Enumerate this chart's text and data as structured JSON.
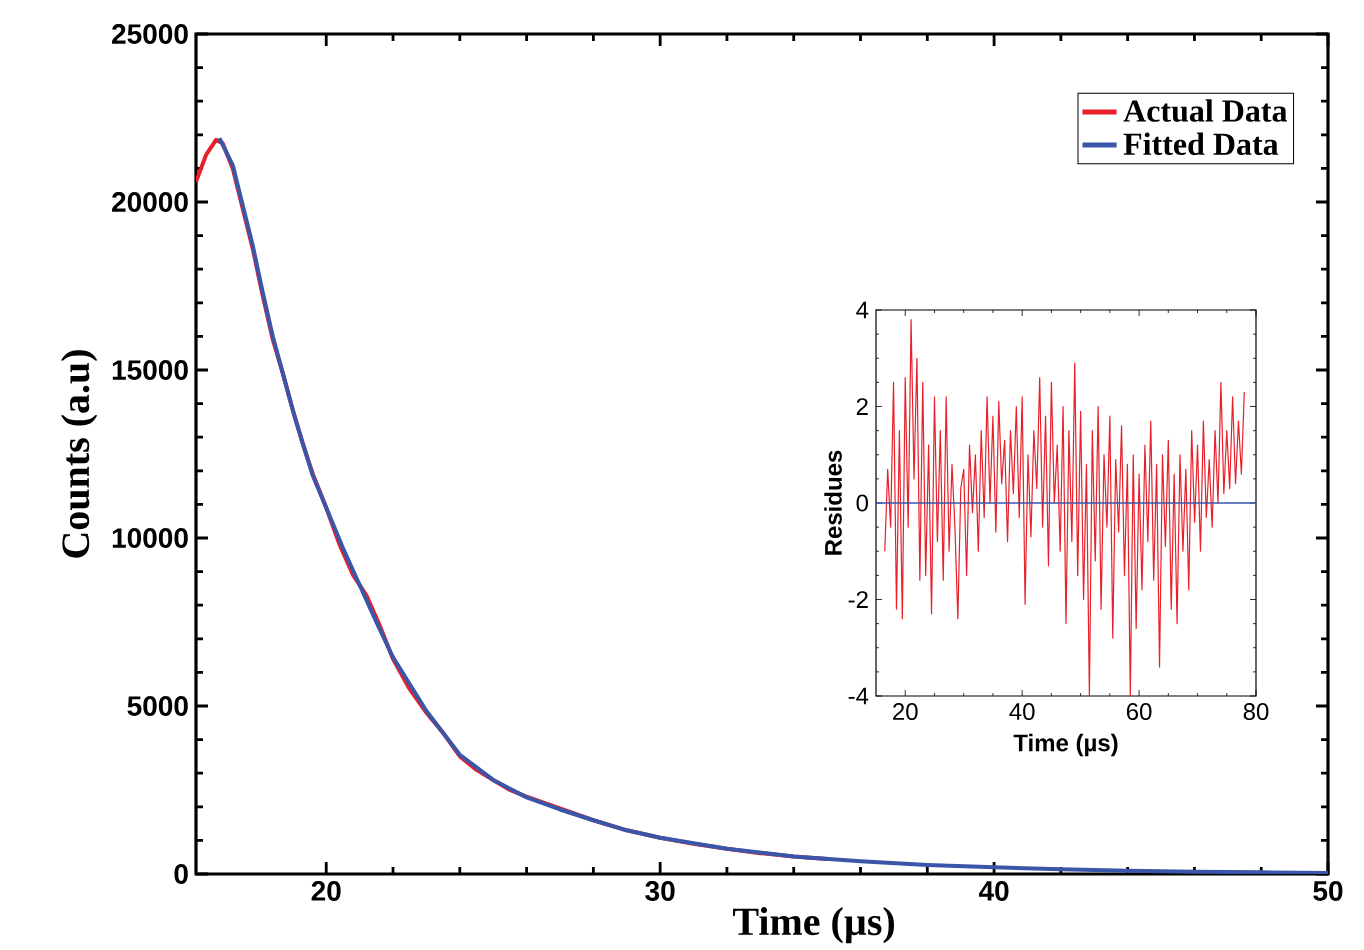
{
  "chart_data": [
    {
      "type": "line",
      "xlabel": "Time (µs)",
      "ylabel": "Counts (a.u)",
      "xlim": [
        16.1,
        50
      ],
      "xticks": [
        20,
        30,
        40,
        50
      ],
      "ylim": [
        0,
        25000
      ],
      "yticks": [
        0,
        5000,
        10000,
        15000,
        20000,
        25000
      ],
      "legend": "top right",
      "series": [
        {
          "name": "Actual Data",
          "color": "#e8202a",
          "x": [
            16.1,
            16.4,
            16.7,
            16.9,
            17.2,
            17.5,
            17.8,
            18.1,
            18.4,
            18.7,
            19,
            19.3,
            19.6,
            20,
            20.4,
            20.8,
            21.2,
            21.6,
            22,
            22.5,
            23,
            23.5,
            24,
            24.5,
            25,
            25.5,
            26,
            27,
            28,
            29,
            30,
            31,
            32,
            33,
            34,
            35
          ],
          "values": [
            20600,
            21400,
            21850,
            21750,
            21000,
            19800,
            18600,
            17200,
            15900,
            14900,
            13800,
            12800,
            11900,
            10900,
            9800,
            8900,
            8300,
            7400,
            6400,
            5500,
            4800,
            4200,
            3500,
            3100,
            2800,
            2500,
            2300,
            1950,
            1600,
            1300,
            1080,
            900,
            750,
            620,
            520,
            450
          ]
        },
        {
          "name": "Fitted Data",
          "color": "#3a56a8",
          "x": [
            16.8,
            17.2,
            17.5,
            17.8,
            18.1,
            18.4,
            18.7,
            19,
            19.3,
            19.6,
            20,
            20.5,
            21,
            21.5,
            22,
            23,
            24,
            25,
            26,
            27,
            28,
            29,
            30,
            32,
            34,
            36,
            38,
            40,
            42,
            44,
            46,
            48,
            50
          ],
          "values": [
            21900,
            21100,
            19900,
            18700,
            17300,
            16000,
            14900,
            13800,
            12800,
            11850,
            10900,
            9700,
            8600,
            7500,
            6450,
            4850,
            3550,
            2800,
            2280,
            1920,
            1600,
            1300,
            1080,
            750,
            520,
            380,
            270,
            200,
            140,
            100,
            70,
            50,
            30
          ]
        }
      ]
    },
    {
      "type": "line",
      "xlabel": "Time (µs)",
      "ylabel": "Residues",
      "xlim": [
        15,
        80
      ],
      "xticks": [
        20,
        40,
        60,
        80
      ],
      "ylim": [
        -4,
        4
      ],
      "yticks": [
        -4,
        -2,
        0,
        2,
        4
      ],
      "ref_lines": [
        {
          "axis": "y",
          "value": 0,
          "color": "#3a56a8"
        }
      ],
      "series": [
        {
          "color": "#e8202a",
          "x": [
            16.5,
            17,
            17.5,
            18,
            18.5,
            19,
            19.5,
            20,
            20.5,
            21,
            21.5,
            22,
            22.5,
            23,
            23.5,
            24,
            24.5,
            25,
            25.5,
            26,
            26.5,
            27,
            27.5,
            28,
            28.5,
            29,
            29.5,
            30,
            30.5,
            31,
            31.5,
            32,
            32.5,
            33,
            33.5,
            34,
            34.5,
            35,
            35.5,
            36,
            36.5,
            37,
            37.5,
            38,
            38.5,
            39,
            39.5,
            40,
            40.5,
            41,
            41.5,
            42,
            42.5,
            43,
            43.5,
            44,
            44.5,
            45,
            45.5,
            46,
            46.5,
            47,
            47.5,
            48,
            48.5,
            49,
            49.5,
            50,
            50.5,
            51,
            51.5,
            52,
            52.5,
            53,
            53.5,
            54,
            54.5,
            55,
            55.5,
            56,
            56.5,
            57,
            57.5,
            58,
            58.5,
            59,
            59.5,
            60,
            60.5,
            61,
            61.5,
            62,
            62.5,
            63,
            63.5,
            64,
            64.5,
            65,
            65.5,
            66,
            66.5,
            67,
            67.5,
            68,
            68.5,
            69,
            69.5,
            70,
            70.5,
            71,
            71.5,
            72,
            72.5,
            73,
            73.5,
            74,
            74.5,
            75,
            75.5,
            76,
            76.5,
            77,
            77.5,
            78
          ],
          "values": [
            -1.0,
            0.7,
            -0.5,
            2.5,
            -2.2,
            1.5,
            -2.4,
            2.6,
            -0.5,
            3.8,
            0.5,
            3.0,
            -1.6,
            2.5,
            -1.5,
            1.2,
            -2.3,
            2.2,
            -0.8,
            1.5,
            -1.6,
            2.2,
            -1.0,
            0.8,
            -0.5,
            -2.4,
            0.3,
            0.7,
            -1.5,
            1.2,
            -0.2,
            1.0,
            -1.0,
            1.5,
            -0.3,
            2.2,
            0.0,
            1.8,
            -0.6,
            2.1,
            0.4,
            1.3,
            -0.8,
            1.5,
            0.2,
            2.0,
            -0.3,
            2.2,
            -2.1,
            1.0,
            -0.7,
            1.5,
            0.3,
            2.6,
            -0.5,
            1.8,
            -1.3,
            2.5,
            0.0,
            1.2,
            -1.0,
            2.0,
            -2.5,
            1.5,
            -0.8,
            2.9,
            -1.5,
            1.9,
            -2.0,
            0.8,
            -4.0,
            1.5,
            -1.2,
            2.0,
            -2.2,
            1.0,
            -0.5,
            1.8,
            -2.8,
            0.9,
            -0.6,
            1.6,
            -1.5,
            0.8,
            -4.0,
            1.0,
            -2.6,
            0.6,
            -1.8,
            1.2,
            -0.8,
            1.7,
            -1.6,
            0.8,
            -3.4,
            1.0,
            -0.9,
            1.3,
            -2.2,
            0.6,
            -2.5,
            1.0,
            -1.0,
            0.7,
            -1.8,
            1.5,
            -0.4,
            1.2,
            -1.0,
            1.7,
            -0.3,
            0.9,
            -0.5,
            1.5,
            0.0,
            2.5,
            0.2,
            1.5,
            0.3,
            2.2,
            0.4,
            1.7,
            0.6,
            2.3
          ]
        }
      ]
    }
  ]
}
